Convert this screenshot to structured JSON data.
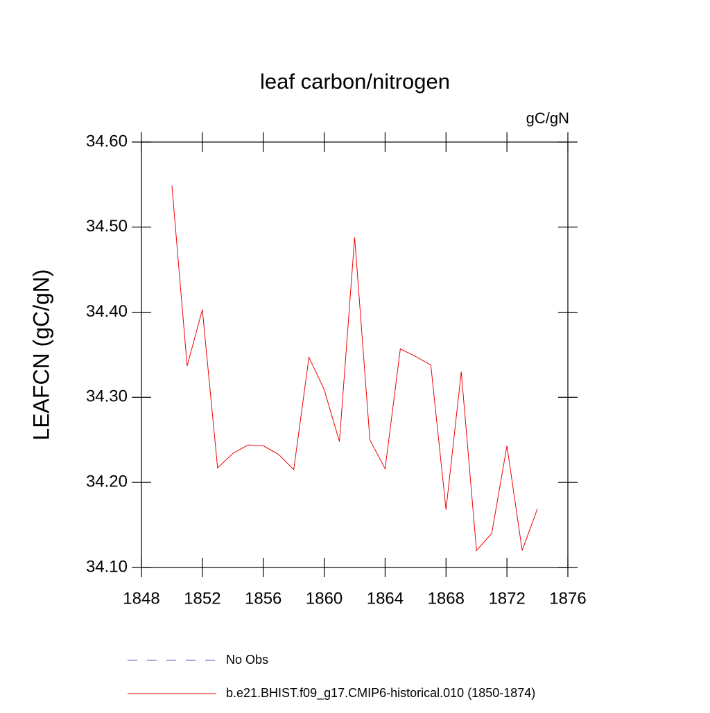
{
  "chart_data": {
    "type": "line",
    "title": "leaf carbon/nitrogen",
    "units": "gC/gN",
    "y_label": "LEAFCN  (gC/gN)",
    "x": [
      1850,
      1851,
      1852,
      1853,
      1854,
      1855,
      1856,
      1857,
      1858,
      1859,
      1860,
      1861,
      1862,
      1863,
      1864,
      1865,
      1866,
      1867,
      1868,
      1869,
      1870,
      1871,
      1872,
      1873,
      1874
    ],
    "series": [
      {
        "name": "No Obs",
        "color": "#5555aa",
        "dash": true,
        "values": [
          null,
          null,
          null,
          null,
          null,
          null,
          null,
          null,
          null,
          null,
          null,
          null,
          null,
          null,
          null,
          null,
          null,
          null,
          null,
          null,
          null,
          null,
          null,
          null,
          null
        ]
      },
      {
        "name": "b.e21.BHIST.f09_g17.CMIP6-historical.010 (1850-1874)",
        "color": "#ee0000",
        "dash": false,
        "values": [
          34.549,
          34.337,
          34.403,
          34.217,
          34.234,
          34.244,
          34.243,
          34.233,
          34.215,
          34.347,
          34.309,
          34.248,
          34.488,
          34.25,
          34.216,
          34.357,
          34.348,
          34.338,
          34.168,
          34.33,
          34.12,
          34.14,
          34.243,
          34.12,
          34.169
        ]
      }
    ],
    "xlim": [
      1848,
      1876
    ],
    "xticks": [
      1848,
      1852,
      1856,
      1860,
      1864,
      1868,
      1872,
      1876
    ],
    "ylim": [
      34.1,
      34.6
    ],
    "yticks": [
      {
        "value": 34.1,
        "label": "34.10"
      },
      {
        "value": 34.2,
        "label": "34.20"
      },
      {
        "value": 34.3,
        "label": "34.30"
      },
      {
        "value": 34.4,
        "label": "34.40"
      },
      {
        "value": 34.5,
        "label": "34.50"
      },
      {
        "value": 34.6,
        "label": "34.60"
      }
    ],
    "grid": false,
    "legend": "bottom"
  }
}
